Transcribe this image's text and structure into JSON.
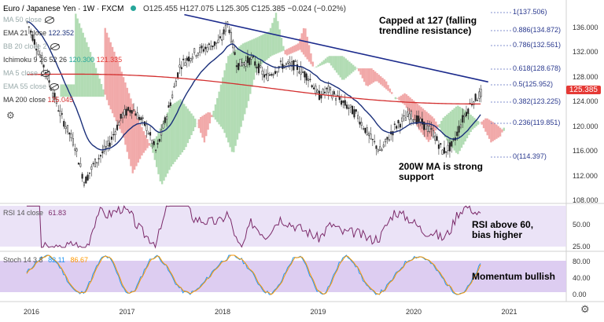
{
  "header": {
    "symbol": "Euro / Japanese Yen",
    "interval": "1W",
    "exchange": "FXCM",
    "ohlc": "O125.455 H127.075 L125.305 C125.385 −0.024 (−0.02%)"
  },
  "indicators": [
    {
      "label": "MA 50 close",
      "value": "",
      "hidden": true
    },
    {
      "label": "EMA 21 close",
      "value": "122.352",
      "hidden": false
    },
    {
      "label": "BB 20 close 2",
      "value": "",
      "hidden": true
    },
    {
      "label": "Ichimoku 9 26 52 26",
      "value": "120.300",
      "value2": "121.335",
      "hidden": false
    },
    {
      "label": "MA 5 close",
      "value": "",
      "hidden": true
    },
    {
      "label": "EMA 55 close",
      "value": "",
      "hidden": true
    },
    {
      "label": "MA 200 close",
      "value": "125.045",
      "hidden": false
    }
  ],
  "price_axis": [
    "136.000",
    "132.000",
    "128.000",
    "124.000",
    "120.000",
    "116.000",
    "112.000",
    "108.000"
  ],
  "current_price": "125.385",
  "fib_levels": [
    {
      "label": "1(137.506)"
    },
    {
      "label": "0.886(134.872)"
    },
    {
      "label": "0.786(132.561)"
    },
    {
      "label": "0.618(128.678)"
    },
    {
      "label": "0.5(125.952)"
    },
    {
      "label": "0.382(123.225)"
    },
    {
      "label": "0.236(119.851)"
    },
    {
      "label": "0(114.397)"
    }
  ],
  "annotations": {
    "trendline": "Capped at 127 (falling trendline resistance)",
    "ma200": "200W MA is strong support",
    "rsi": "RSI above 60, bias higher",
    "stoch": "Momentum bullish"
  },
  "rsi": {
    "label": "RSI 14 close",
    "value": "61.83",
    "axis": [
      "50.00",
      "25.00"
    ]
  },
  "stoch": {
    "label": "Stoch 14 3 3",
    "k": "82.11",
    "d": "86.67",
    "axis": [
      "80.00",
      "40.00",
      "0.00"
    ]
  },
  "time_axis": [
    "2016",
    "2017",
    "2018",
    "2019",
    "2020",
    "2021"
  ],
  "colors": {
    "ema21": "#1a2f7a",
    "ma200": "#d32f2f",
    "trendline": "#1b2a8c",
    "cloud_bull": "#a5d6a7",
    "cloud_bear": "#ef9a9a",
    "rsi_line": "#7b2a6a",
    "rsi_band": "#e6dcf5",
    "stoch_k": "#2196f3",
    "stoch_d": "#ff9800",
    "price_badge": "#e53935"
  },
  "icons": [
    "settings-gear-icon",
    "gear-icon"
  ]
}
